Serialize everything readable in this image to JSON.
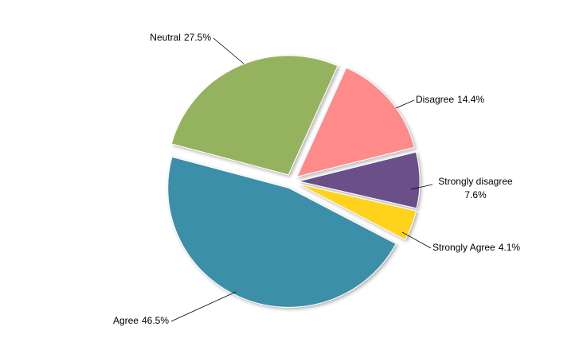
{
  "chart_data": {
    "type": "pie",
    "categories": [
      "Disagree",
      "Strongly disagree",
      "Strongly Agree",
      "Agree",
      "Neutral"
    ],
    "values": [
      14.4,
      7.6,
      4.1,
      46.5,
      27.5
    ],
    "value_labels": [
      "14.4%",
      "7.6%",
      "4.1%",
      "46.5%",
      "27.5%"
    ],
    "colors": [
      "#ff8a8a",
      "#6b5089",
      "#ffd21a",
      "#3a8fa9",
      "#95b25f"
    ]
  }
}
